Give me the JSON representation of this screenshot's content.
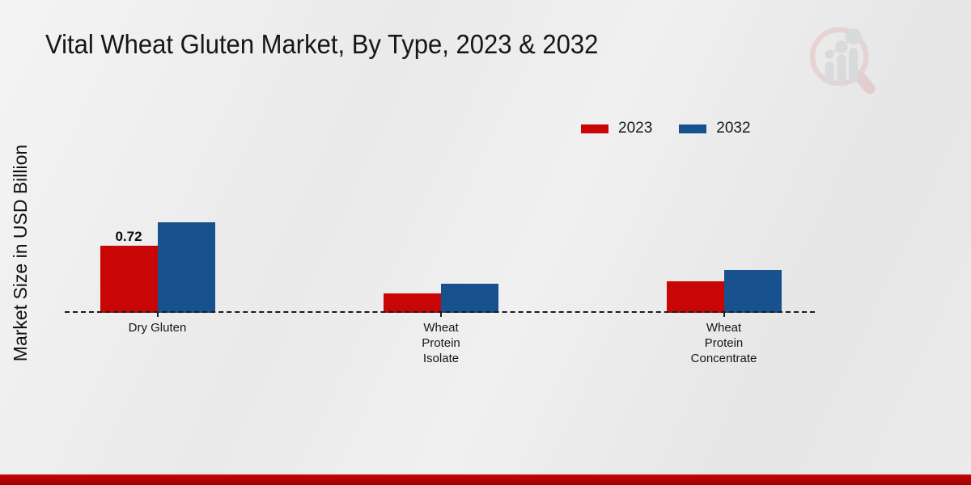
{
  "title": "Vital Wheat Gluten Market, By Type, 2023 & 2032",
  "y_axis_label": "Market Size in USD Billion",
  "legend": [
    {
      "label": "2023",
      "color": "#c90606"
    },
    {
      "label": "2032",
      "color": "#17528e"
    }
  ],
  "chart_data": {
    "type": "bar",
    "categories": [
      "Dry Gluten",
      "Wheat\nProtein\nIsolate",
      "Wheat\nProtein\nConcentrate"
    ],
    "series": [
      {
        "name": "2023",
        "color": "#c90606",
        "values": [
          0.72,
          0.21,
          0.34
        ]
      },
      {
        "name": "2032",
        "color": "#17528e",
        "values": [
          0.97,
          0.31,
          0.46
        ]
      }
    ],
    "annotations": [
      {
        "text": "0.72",
        "series_index": 0,
        "category_index": 0
      }
    ],
    "title": "Vital Wheat Gluten Market, By Type, 2023 & 2032",
    "xlabel": "",
    "ylabel": "Market Size in USD Billion",
    "ylim": [
      0,
      1.1
    ],
    "grid": false,
    "baseline_style": "dashed",
    "legend_position": "top-right"
  },
  "colors": {
    "series_2023": "#c90606",
    "series_2032": "#17528e",
    "footer_stripe": "#b30303",
    "background": "#ececec"
  },
  "watermark": {
    "icon": "market-research-future-logo"
  }
}
